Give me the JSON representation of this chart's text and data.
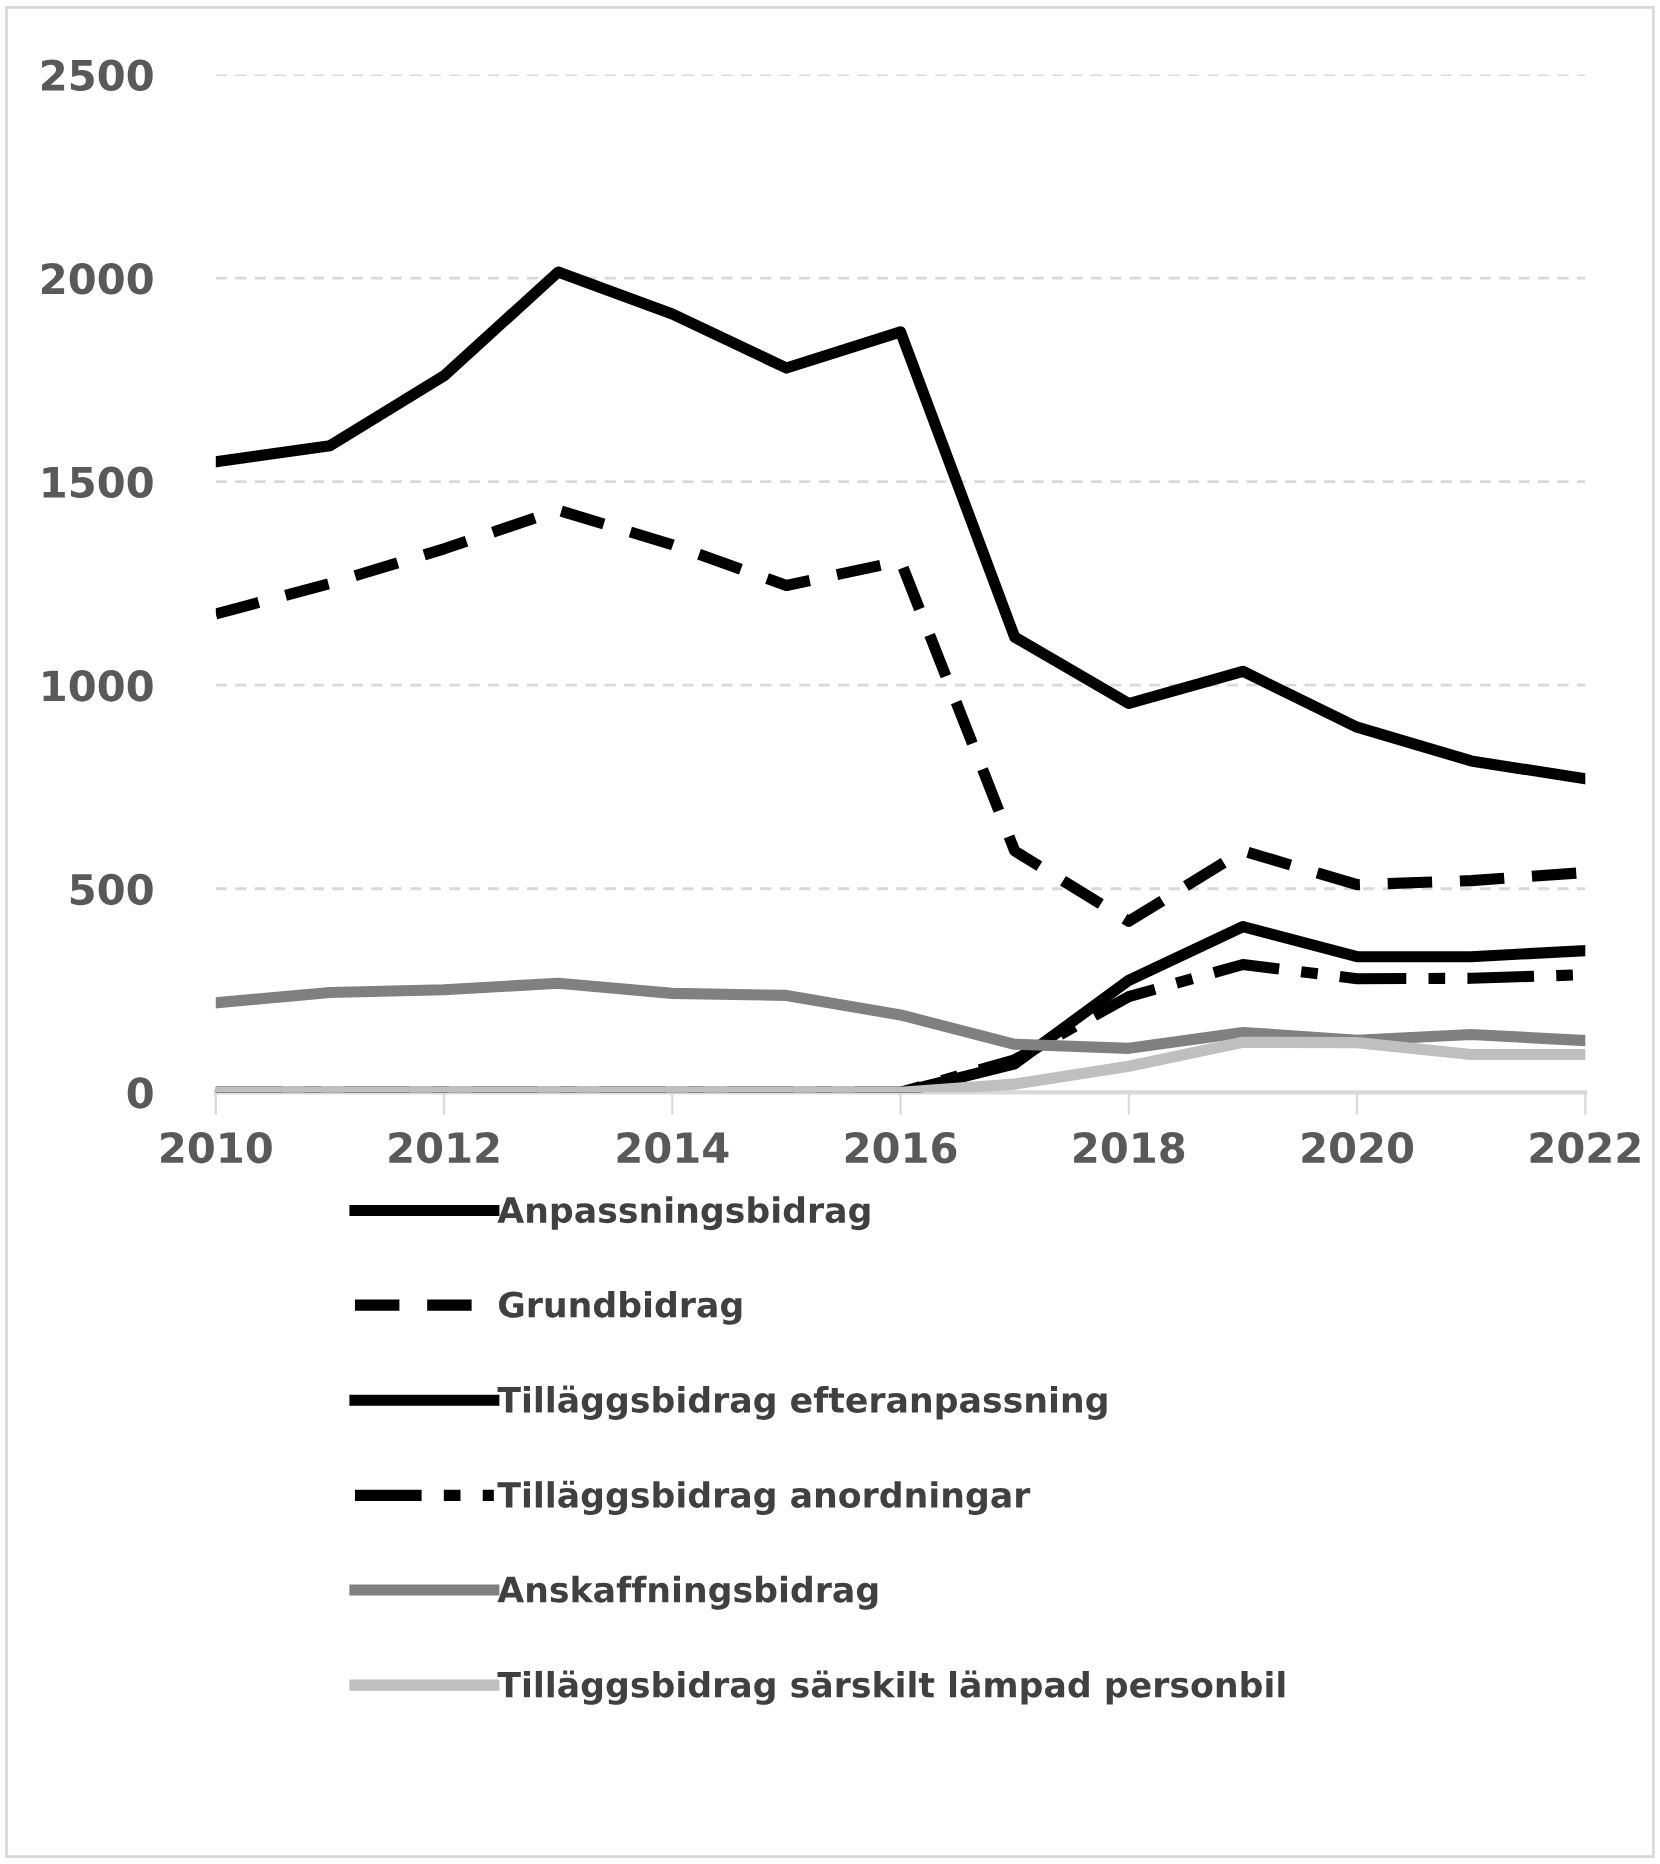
{
  "chart_data": {
    "type": "line",
    "x": [
      2010,
      2011,
      2012,
      2013,
      2014,
      2015,
      2016,
      2017,
      2018,
      2019,
      2020,
      2021,
      2022
    ],
    "xlim": [
      2010,
      2022
    ],
    "xticks": [
      2010,
      2012,
      2014,
      2016,
      2018,
      2020,
      2022
    ],
    "ylim": [
      0,
      2500
    ],
    "yticks": [
      0,
      500,
      1000,
      1500,
      2000,
      2500
    ],
    "grid": "y",
    "legend": "bottom",
    "series": [
      {
        "name": "Anpassningsbidrag",
        "color": "#000000",
        "line_style": "solid",
        "values": [
          1549,
          1588,
          1760,
          2015,
          1912,
          1779,
          1868,
          1118,
          955,
          1034,
          897,
          814,
          770
        ]
      },
      {
        "name": "Grundbidrag",
        "color": "#000000",
        "line_style": "dashed",
        "values": [
          1175,
          1250,
          1335,
          1430,
          1345,
          1245,
          1305,
          593,
          420,
          593,
          510,
          520,
          540
        ]
      },
      {
        "name": "Tilläggsbidrag efteranpassning",
        "color": "#000000",
        "line_style": "solid",
        "values": [
          0,
          0,
          0,
          0,
          0,
          0,
          0,
          70,
          275,
          407,
          333,
          333,
          348
        ]
      },
      {
        "name": "Tilläggsbidrag anordningar",
        "color": "#000000",
        "line_style": "dashdot",
        "values": [
          0,
          0,
          0,
          0,
          0,
          0,
          0,
          80,
          235,
          314,
          279,
          280,
          289
        ]
      },
      {
        "name": "Anskaffningsbidrag",
        "color": "#808080",
        "line_style": "solid",
        "values": [
          220,
          245,
          252,
          268,
          243,
          238,
          190,
          118,
          108,
          147,
          128,
          142,
          127
        ]
      },
      {
        "name": "Tilläggsbidrag särskilt lämpad personbil",
        "color": "#bfbfbf",
        "line_style": "solid",
        "values": [
          0,
          0,
          0,
          0,
          0,
          0,
          0,
          20,
          64,
          123,
          122,
          93,
          93
        ]
      }
    ]
  }
}
